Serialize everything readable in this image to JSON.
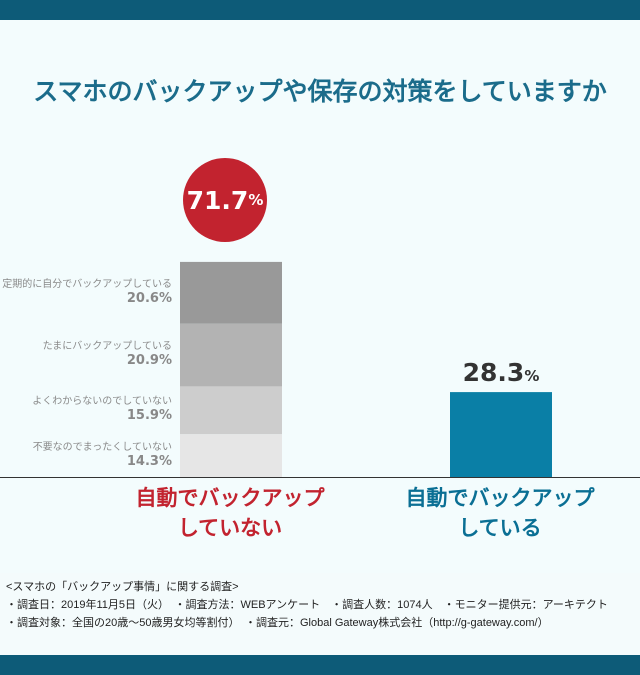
{
  "title": "スマホのバックアップや保存の対策をしていますか",
  "chart_data": {
    "type": "bar",
    "categories": [
      "自動でバックアップしていない",
      "自動でバックアップしている"
    ],
    "totals": [
      "71.7",
      "28.3"
    ],
    "unit": "%",
    "stack": [
      {
        "name": "定期的に自分でバックアップしている",
        "value": 20.6,
        "color": "#999999"
      },
      {
        "name": "たまにバックアップしている",
        "value": 20.9,
        "color": "#b3b3b3"
      },
      {
        "name": "よくわからないのでしていない",
        "value": 15.9,
        "color": "#cdcdcd"
      },
      {
        "name": "不要なのでまったくしていない",
        "value": 14.3,
        "color": "#e6e6e6"
      }
    ],
    "single": {
      "value": 28.3,
      "color": "#0a7fa6"
    },
    "cat_labels": [
      [
        "自動でバックアップ",
        "していない"
      ],
      [
        "自動でバックアップ",
        "している"
      ]
    ],
    "cat_colors": [
      "#c2232f",
      "#0a6f94"
    ],
    "ylim": [
      0,
      100
    ]
  },
  "notes": [
    "<スマホの「バックアップ事情」に関する調査>",
    "・調査日：2019年11月5日（火）　・調査方法：WEBアンケート　・調査人数：1074人　・モニター提供元：アーキテクト",
    "・調査対象：全国の20歳〜50歳男女均等割付）　・調査元：Global Gateway株式会社（http://g-gateway.com/）"
  ]
}
